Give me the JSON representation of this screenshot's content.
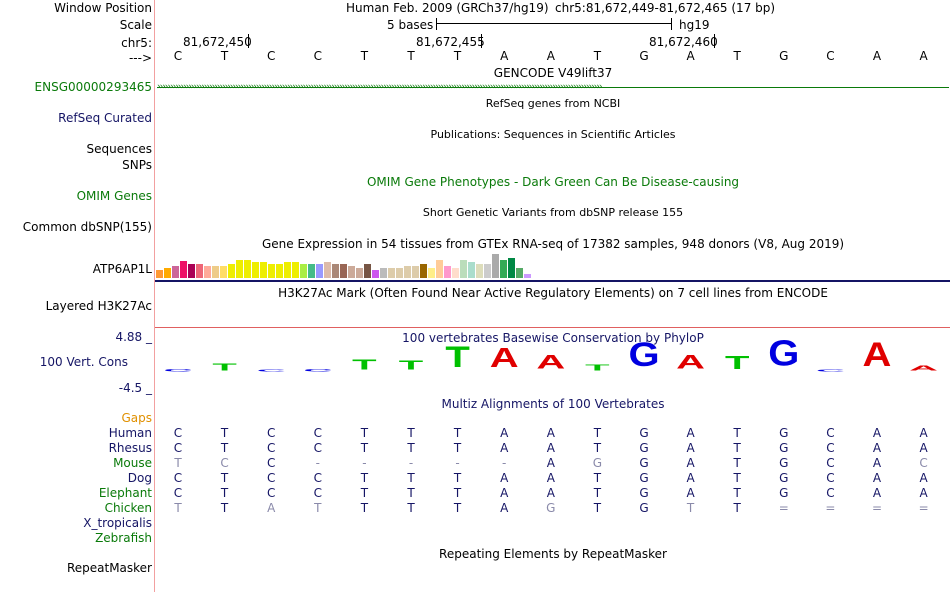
{
  "header": {
    "window_position_label": "Window Position",
    "scale_label": "Scale",
    "chrom_label": "chr5:",
    "arrow_label": "--->",
    "assembly_text": "Human Feb. 2009 (GRCh37/hg19)",
    "position_text": "chr5:81,672,449-81,672,465 (17 bp)",
    "scale_text": "5 bases",
    "db_text": "hg19",
    "ticks": [
      "81,672,450",
      "81,672,455",
      "81,672,460"
    ]
  },
  "bases": [
    "C",
    "T",
    "C",
    "C",
    "T",
    "T",
    "T",
    "A",
    "A",
    "T",
    "G",
    "A",
    "T",
    "G",
    "C",
    "A",
    "A"
  ],
  "tracks": {
    "gencode": {
      "title": "GENCODE V49lift37",
      "label": "ENSG00000293465"
    },
    "refseq": {
      "title": "RefSeq genes from NCBI",
      "label": "RefSeq Curated"
    },
    "publications": {
      "title": "Publications: Sequences in Scientific Articles",
      "label1": "Sequences",
      "label2": "SNPs"
    },
    "omim": {
      "title": "OMIM Gene Phenotypes - Dark Green Can Be Disease-causing",
      "label": "OMIM Genes"
    },
    "dbsnp": {
      "title": "Short Genetic Variants from dbSNP release 155",
      "label": "Common dbSNP(155)"
    },
    "gtex": {
      "title": "Gene Expression in 54 tissues from GTEx RNA-seq of 17382 samples, 948 donors (V8, Aug 2019)",
      "label": "ATP6AP1L"
    },
    "h3k27ac": {
      "title": "H3K27Ac Mark (Often Found Near Active Regulatory Elements) on 7 cell lines from ENCODE",
      "label": "Layered H3K27Ac"
    },
    "conservation": {
      "title": "100 vertebrates Basewise Conservation by PhyloP",
      "label": "100 Vert. Cons",
      "max_label": "4.88 _",
      "min_label": "-4.5 _"
    },
    "multiz": {
      "title": "Multiz Alignments of 100 Vertebrates",
      "gaps_label": "Gaps"
    },
    "repeatmasker": {
      "title": "Repeating Elements by RepeatMasker",
      "label": "RepeatMasker"
    }
  },
  "gtex_bars": [
    {
      "h": 8,
      "color": "#ff9933"
    },
    {
      "h": 10,
      "color": "#ffaa00"
    },
    {
      "h": 12,
      "color": "#cc6699"
    },
    {
      "h": 17,
      "color": "#ee1166"
    },
    {
      "h": 14,
      "color": "#aa0055"
    },
    {
      "h": 14,
      "color": "#ee6677"
    },
    {
      "h": 12,
      "color": "#ffaa99"
    },
    {
      "h": 12,
      "color": "#eecc88"
    },
    {
      "h": 12,
      "color": "#ffdd66"
    },
    {
      "h": 14,
      "color": "#eeee00"
    },
    {
      "h": 18,
      "color": "#eeee00"
    },
    {
      "h": 18,
      "color": "#eeee00"
    },
    {
      "h": 16,
      "color": "#eeee00"
    },
    {
      "h": 16,
      "color": "#eeee00"
    },
    {
      "h": 14,
      "color": "#eeee00"
    },
    {
      "h": 14,
      "color": "#eeee00"
    },
    {
      "h": 16,
      "color": "#eeee00"
    },
    {
      "h": 16,
      "color": "#eeee00"
    },
    {
      "h": 14,
      "color": "#aaee44"
    },
    {
      "h": 14,
      "color": "#44bb88"
    },
    {
      "h": 14,
      "color": "#9999ff"
    },
    {
      "h": 16,
      "color": "#ddbbaa"
    },
    {
      "h": 14,
      "color": "#aa8877"
    },
    {
      "h": 14,
      "color": "#996655"
    },
    {
      "h": 12,
      "color": "#ccaa99"
    },
    {
      "h": 10,
      "color": "#ccaa99"
    },
    {
      "h": 14,
      "color": "#775544"
    },
    {
      "h": 8,
      "color": "#cc55ee"
    },
    {
      "h": 10,
      "color": "#bbbbbb"
    },
    {
      "h": 10,
      "color": "#ddccaa"
    },
    {
      "h": 10,
      "color": "#ddccaa"
    },
    {
      "h": 12,
      "color": "#ddccaa"
    },
    {
      "h": 12,
      "color": "#ddccaa"
    },
    {
      "h": 14,
      "color": "#996600"
    },
    {
      "h": 10,
      "color": "#ffee88"
    },
    {
      "h": 18,
      "color": "#ffcc99"
    },
    {
      "h": 12,
      "color": "#ff99cc"
    },
    {
      "h": 10,
      "color": "#ffddcc"
    },
    {
      "h": 18,
      "color": "#bbddbb"
    },
    {
      "h": 16,
      "color": "#aaddcc"
    },
    {
      "h": 14,
      "color": "#ddddbb"
    },
    {
      "h": 14,
      "color": "#cccccc"
    },
    {
      "h": 24,
      "color": "#aaaaaa"
    },
    {
      "h": 18,
      "color": "#33aa55"
    },
    {
      "h": 20,
      "color": "#008844"
    },
    {
      "h": 10,
      "color": "#55aa66"
    },
    {
      "h": 4,
      "color": "#cc99ff"
    }
  ],
  "conservation_scores": [
    0.4,
    1.2,
    0.2,
    0.4,
    1.8,
    1.6,
    3.6,
    3.4,
    2.4,
    1.0,
    4.2,
    2.4,
    2.2,
    4.4,
    0.2,
    4.2,
    0.9
  ],
  "conservation_colors": {
    "A": "#e00000",
    "C": "#0000e0",
    "G": "#0000e0",
    "T": "#00c000"
  },
  "species": [
    {
      "name": "Human",
      "color": "#151565",
      "seq": [
        "C",
        "T",
        "C",
        "C",
        "T",
        "T",
        "T",
        "A",
        "A",
        "T",
        "G",
        "A",
        "T",
        "G",
        "C",
        "A",
        "A"
      ],
      "dim": []
    },
    {
      "name": "Rhesus",
      "color": "#151565",
      "seq": [
        "C",
        "T",
        "C",
        "C",
        "T",
        "T",
        "T",
        "A",
        "A",
        "T",
        "G",
        "A",
        "T",
        "G",
        "C",
        "A",
        "A"
      ],
      "dim": []
    },
    {
      "name": "Mouse",
      "color": "#0a7a0a",
      "seq": [
        "T",
        "C",
        "C",
        "-",
        "-",
        "-",
        "-",
        "-",
        "A",
        "G",
        "G",
        "A",
        "T",
        "G",
        "C",
        "A",
        "C"
      ],
      "dim": [
        0,
        1,
        3,
        4,
        5,
        6,
        7,
        9,
        16
      ]
    },
    {
      "name": "Dog",
      "color": "#151565",
      "seq": [
        "C",
        "T",
        "C",
        "C",
        "T",
        "T",
        "T",
        "A",
        "A",
        "T",
        "G",
        "A",
        "T",
        "G",
        "C",
        "A",
        "A"
      ],
      "dim": []
    },
    {
      "name": "Elephant",
      "color": "#0a7a0a",
      "seq": [
        "C",
        "T",
        "C",
        "C",
        "T",
        "T",
        "T",
        "A",
        "A",
        "T",
        "G",
        "A",
        "T",
        "G",
        "C",
        "A",
        "A"
      ],
      "dim": []
    },
    {
      "name": "Chicken",
      "color": "#0a7a0a",
      "seq": [
        "T",
        "T",
        "A",
        "T",
        "T",
        "T",
        "T",
        "A",
        "G",
        "T",
        "G",
        "T",
        "T",
        "=",
        "=",
        "=",
        "="
      ],
      "dim": [
        0,
        2,
        3,
        8,
        11,
        13,
        14,
        15,
        16
      ]
    },
    {
      "name": "X_tropicalis",
      "color": "#151565",
      "seq": [],
      "dim": []
    },
    {
      "name": "Zebrafish",
      "color": "#0a7a0a",
      "seq": [],
      "dim": []
    }
  ]
}
